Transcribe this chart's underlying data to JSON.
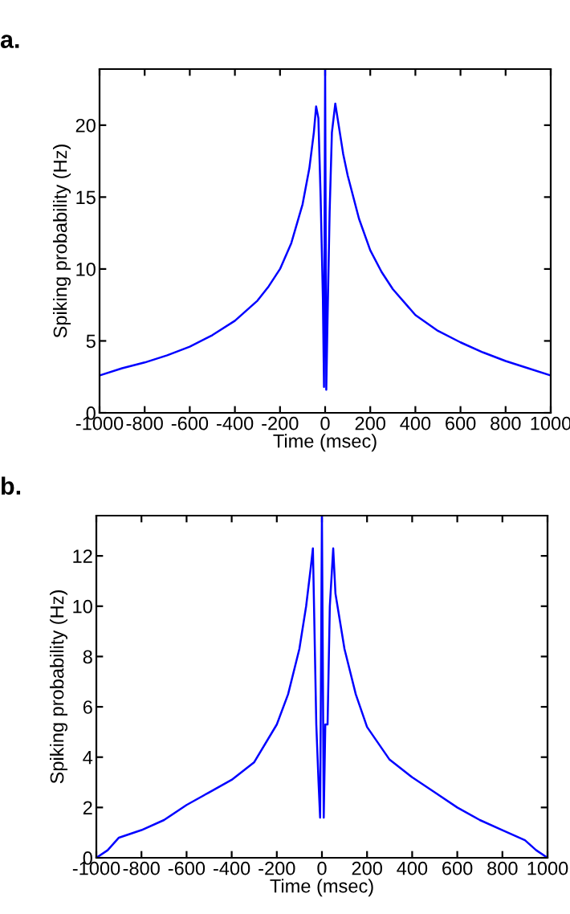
{
  "chart_data": [
    {
      "type": "line",
      "annotations": [
        "a."
      ],
      "xlabel": "Time (msec)",
      "ylabel": "Spiking probability (Hz)",
      "x": [
        -1000,
        -900,
        -800,
        -700,
        -600,
        -500,
        -400,
        -300,
        -250,
        -200,
        -150,
        -100,
        -70,
        -50,
        -40,
        -30,
        -20,
        -10,
        -5,
        0,
        5,
        10,
        20,
        30,
        45,
        60,
        80,
        100,
        150,
        200,
        250,
        300,
        400,
        500,
        600,
        700,
        800,
        900,
        1000
      ],
      "series": [
        {
          "color": "#0000ff",
          "values": [
            2.6,
            3.1,
            3.5,
            4.0,
            4.6,
            5.4,
            6.4,
            7.8,
            8.8,
            10.0,
            11.8,
            14.5,
            17,
            19.5,
            21.3,
            20.5,
            15,
            8,
            1.8,
            23.9,
            1.6,
            6,
            14,
            19.5,
            21.5,
            20,
            18,
            16.5,
            13.5,
            11.3,
            9.8,
            8.6,
            6.8,
            5.7,
            4.9,
            4.2,
            3.6,
            3.1,
            2.6
          ]
        }
      ],
      "xlim": [
        -1000,
        1000
      ],
      "ylim": [
        0,
        23.9
      ],
      "xticks": [
        -1000,
        -800,
        -600,
        -400,
        -200,
        0,
        200,
        400,
        600,
        800,
        1000
      ],
      "yticks": [
        0,
        5,
        10,
        15,
        20
      ]
    },
    {
      "type": "line",
      "annotations": [
        "b."
      ],
      "xlabel": "Time (msec)",
      "ylabel": "Spiking probability (Hz)",
      "x": [
        -1000,
        -950,
        -900,
        -800,
        -700,
        -600,
        -500,
        -400,
        -300,
        -200,
        -150,
        -100,
        -70,
        -50,
        -40,
        -35,
        -25,
        -15,
        -8,
        0,
        8,
        15,
        25,
        35,
        50,
        60,
        100,
        150,
        200,
        300,
        400,
        500,
        600,
        700,
        800,
        900,
        950,
        1000
      ],
      "series": [
        {
          "color": "#0000ff",
          "values": [
            0,
            0.3,
            0.8,
            1.1,
            1.5,
            2.1,
            2.6,
            3.1,
            3.8,
            5.3,
            6.5,
            8.3,
            10,
            11.5,
            12.3,
            10,
            5.3,
            3,
            1.6,
            13.6,
            1.6,
            5.3,
            5.3,
            10,
            12.3,
            10.5,
            8.3,
            6.5,
            5.2,
            3.9,
            3.2,
            2.6,
            2.0,
            1.5,
            1.1,
            0.7,
            0.3,
            0
          ]
        }
      ],
      "xlim": [
        -1000,
        1000
      ],
      "ylim": [
        0,
        13.6
      ],
      "xticks": [
        -1000,
        -800,
        -600,
        -400,
        -200,
        0,
        200,
        400,
        600,
        800,
        1000
      ],
      "yticks": [
        0,
        2,
        4,
        6,
        8,
        10,
        12
      ]
    }
  ]
}
